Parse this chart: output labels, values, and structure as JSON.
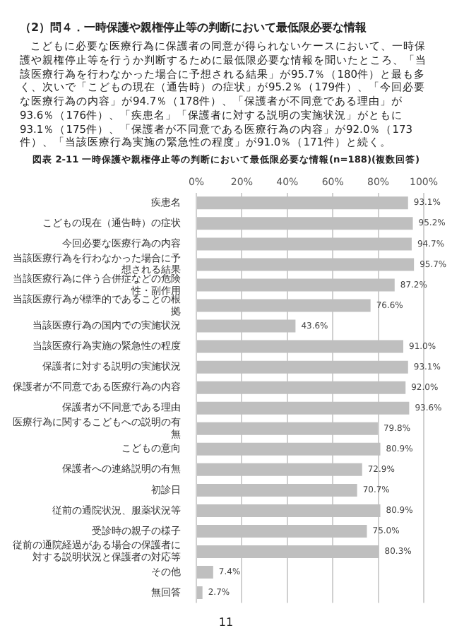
{
  "chart_data": {
    "type": "bar",
    "orientation": "horizontal",
    "title": "図表 2-11 一時保護や親権停止等の判断において最低限必要な情報(n=188)(複数回答)",
    "annotations": [
      "（2）問４．一時保護や親権停止等の判断において最低限必要な情報",
      "こどもに必要な医療行為に保護者の同意が得られないケースにおいて、一時保護や親権停止等を行うか判断するために最低限必要な情報を聞いたところ、「当該医療行為を行わなかった場合に予想される結果」が95.7％（180件）と最も多く、次いで「こどもの現在（通告時）の症状」が95.2％（179件）、「今回必要な医療行為の内容」が94.7％（178件）、「保護者が不同意である理由」が93.6％（176件）、「疾患名」「保護者に対する説明の実施状況」がともに93.1％（175件）、「保護者が不同意である医療行為の内容」が92.0％（173件）、「当該医療行為実施の緊急性の程度」が91.0％（171件）と続く。",
      "11"
    ],
    "categories": [
      "疾患名",
      "こどもの現在（通告時）の症状",
      "今回必要な医療行為の内容",
      "当該医療行為を行わなかった場合に予想される結果",
      "当該医療行為に伴う合併症などの危険性・副作用",
      "当該医療行為が標準的であることの根拠",
      "当該医療行為の国内での実施状況",
      "当該医療行為実施の緊急性の程度",
      "保護者に対する説明の実施状況",
      "保護者が不同意である医療行為の内容",
      "保護者が不同意である理由",
      "医療行為に関するこどもへの説明の有無",
      "こどもの意向",
      "保護者への連絡説明の有無",
      "初診日",
      "従前の通院状況、服薬状況等",
      "受診時の親子の様子",
      "従前の通院経過がある場合の保護者に対する説明状況と保護者の対応等",
      "その他",
      "無回答"
    ],
    "values": [
      93.1,
      95.2,
      94.7,
      95.7,
      87.2,
      76.6,
      43.6,
      91.0,
      93.1,
      92.0,
      93.6,
      79.8,
      80.9,
      72.9,
      70.7,
      80.9,
      75.0,
      80.3,
      7.4,
      2.7
    ],
    "value_labels": [
      "93.1%",
      "95.2%",
      "94.7%",
      "95.7%",
      "87.2%",
      "76.6%",
      "43.6%",
      "91.0%",
      "93.1%",
      "92.0%",
      "93.6%",
      "79.8%",
      "80.9%",
      "72.9%",
      "70.7%",
      "80.9%",
      "75.0%",
      "80.3%",
      "7.4%",
      "2.7%"
    ],
    "color": "#bfbfbf",
    "xlim": [
      0,
      100
    ],
    "xticks": [
      {
        "value": 0,
        "label": "0%"
      },
      {
        "value": 20,
        "label": "20%"
      },
      {
        "value": 40,
        "label": "40%"
      },
      {
        "value": 60,
        "label": "60%"
      },
      {
        "value": 80,
        "label": "80%"
      },
      {
        "value": 100,
        "label": "100%"
      }
    ],
    "grid": "x"
  }
}
